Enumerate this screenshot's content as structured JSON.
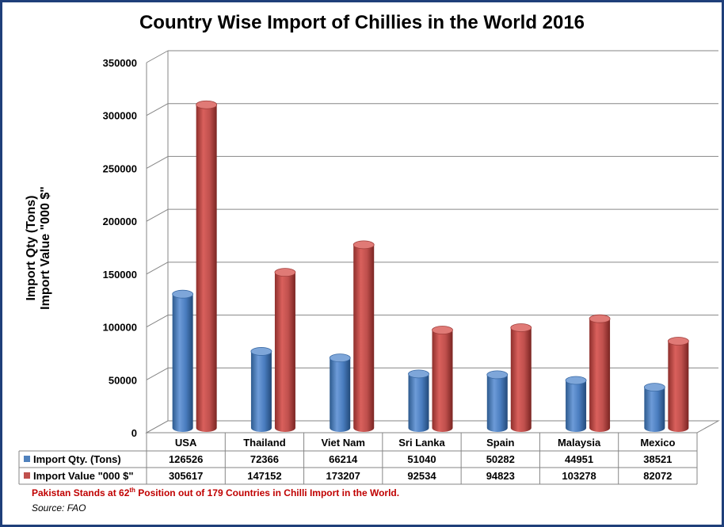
{
  "chart_data": {
    "type": "bar",
    "title": "Country Wise Import of Chillies in the World 2016",
    "ylabel_lines": [
      "Import Qty (Tons)",
      "Import Value \"000 $\""
    ],
    "ylim": [
      0,
      350000
    ],
    "yticks": [
      "0",
      "50000",
      "100000",
      "150000",
      "200000",
      "250000",
      "300000",
      "350000"
    ],
    "categories": [
      "USA",
      "Thailand",
      "Viet Nam",
      "Sri Lanka",
      "Spain",
      "Malaysia",
      "Mexico"
    ],
    "series": [
      {
        "name": "Import Qty. (Tons)",
        "color": "#4f81bd",
        "values": [
          126526,
          72366,
          66214,
          51040,
          50282,
          44951,
          38521
        ]
      },
      {
        "name": "Import Value \"000 $\"",
        "color": "#c0504d",
        "values": [
          305617,
          147152,
          173207,
          92534,
          94823,
          103278,
          82072
        ]
      }
    ],
    "grid": true,
    "legend": "data-table"
  },
  "footnote": {
    "text_main": "Pakistan Stands at 62",
    "text_sup": "th",
    "text_rest": " Position out of 179 Countries in Chilli Import in the World."
  },
  "source": "Source: FAO"
}
